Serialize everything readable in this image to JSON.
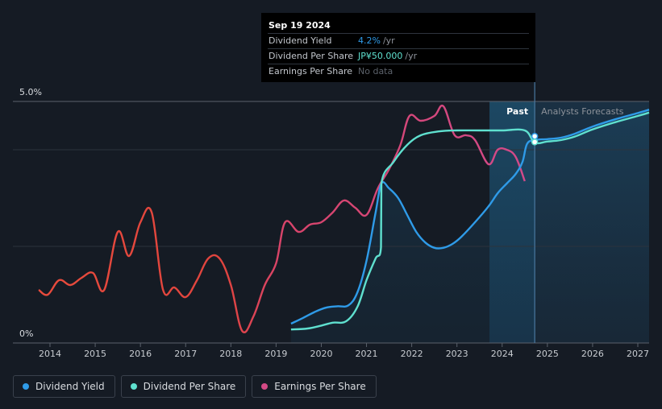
{
  "tooltip": {
    "date": "Sep 19 2024",
    "rows": [
      {
        "label": "Dividend Yield",
        "value": "4.2%",
        "unit": "/yr",
        "color": "#2f9be8"
      },
      {
        "label": "Dividend Per Share",
        "value": "JP¥50.000",
        "unit": "/yr",
        "color": "#5fe0cf"
      },
      {
        "label": "Earnings Per Share",
        "value": "No data",
        "unit": "",
        "color": "#5c626b"
      }
    ]
  },
  "legend": [
    {
      "label": "Dividend Yield",
      "color": "#2f9be8"
    },
    {
      "label": "Dividend Per Share",
      "color": "#5fe0cf"
    },
    {
      "label": "Earnings Per Share",
      "color": "#d44a86"
    }
  ],
  "chart_data": {
    "type": "line",
    "y_axis_labels": [
      "5.0%",
      "0%"
    ],
    "ylim": [
      0,
      5.0
    ],
    "xlim": [
      2013.5,
      2027.3
    ],
    "x_ticks": [
      2014,
      2015,
      2016,
      2017,
      2018,
      2019,
      2020,
      2021,
      2022,
      2023,
      2024,
      2025,
      2026,
      2027
    ],
    "region_labels": {
      "past": "Past",
      "forecast": "Analysts Forecasts"
    },
    "past_start": 2023.72,
    "forecast_start": 2024.72,
    "series": [
      {
        "name": "Dividend Yield",
        "color": "#2f9be8",
        "points": [
          [
            2019.33,
            0.4
          ],
          [
            2019.6,
            0.52
          ],
          [
            2019.85,
            0.64
          ],
          [
            2020.1,
            0.73
          ],
          [
            2020.35,
            0.76
          ],
          [
            2020.6,
            0.78
          ],
          [
            2020.8,
            1.05
          ],
          [
            2021.0,
            1.7
          ],
          [
            2021.2,
            2.7
          ],
          [
            2021.33,
            3.3
          ],
          [
            2021.5,
            3.2
          ],
          [
            2021.7,
            3.0
          ],
          [
            2021.9,
            2.65
          ],
          [
            2022.1,
            2.3
          ],
          [
            2022.3,
            2.08
          ],
          [
            2022.5,
            1.97
          ],
          [
            2022.7,
            1.97
          ],
          [
            2022.9,
            2.05
          ],
          [
            2023.1,
            2.2
          ],
          [
            2023.4,
            2.5
          ],
          [
            2023.7,
            2.83
          ],
          [
            2023.9,
            3.1
          ],
          [
            2024.1,
            3.3
          ],
          [
            2024.3,
            3.5
          ],
          [
            2024.45,
            3.75
          ],
          [
            2024.55,
            4.12
          ],
          [
            2024.72,
            4.2
          ],
          [
            2025.0,
            4.22
          ],
          [
            2025.3,
            4.25
          ],
          [
            2025.6,
            4.33
          ],
          [
            2026.0,
            4.48
          ],
          [
            2026.5,
            4.63
          ],
          [
            2027.0,
            4.76
          ],
          [
            2027.25,
            4.83
          ]
        ]
      },
      {
        "name": "Dividend Per Share",
        "color": "#5fe0cf",
        "points": [
          [
            2019.33,
            0.28
          ],
          [
            2019.7,
            0.3
          ],
          [
            2020.0,
            0.36
          ],
          [
            2020.25,
            0.42
          ],
          [
            2020.55,
            0.45
          ],
          [
            2020.8,
            0.75
          ],
          [
            2021.0,
            1.3
          ],
          [
            2021.2,
            1.75
          ],
          [
            2021.32,
            1.98
          ],
          [
            2021.33,
            3.3
          ],
          [
            2021.6,
            3.75
          ],
          [
            2021.9,
            4.1
          ],
          [
            2022.2,
            4.3
          ],
          [
            2022.6,
            4.38
          ],
          [
            2023.0,
            4.4
          ],
          [
            2023.5,
            4.4
          ],
          [
            2024.0,
            4.4
          ],
          [
            2024.5,
            4.4
          ],
          [
            2024.72,
            4.15
          ],
          [
            2025.0,
            4.17
          ],
          [
            2025.3,
            4.2
          ],
          [
            2025.6,
            4.27
          ],
          [
            2026.0,
            4.42
          ],
          [
            2026.5,
            4.57
          ],
          [
            2027.0,
            4.7
          ],
          [
            2027.25,
            4.77
          ]
        ]
      },
      {
        "name": "Earnings Per Share",
        "color": "#d44a86",
        "points": [
          [
            2013.75,
            1.1
          ],
          [
            2013.95,
            1.0
          ],
          [
            2014.2,
            1.3
          ],
          [
            2014.45,
            1.2
          ],
          [
            2014.7,
            1.35
          ],
          [
            2014.95,
            1.45
          ],
          [
            2015.2,
            1.1
          ],
          [
            2015.5,
            2.3
          ],
          [
            2015.75,
            1.8
          ],
          [
            2016.0,
            2.5
          ],
          [
            2016.25,
            2.7
          ],
          [
            2016.5,
            1.1
          ],
          [
            2016.75,
            1.15
          ],
          [
            2017.0,
            0.95
          ],
          [
            2017.25,
            1.3
          ],
          [
            2017.5,
            1.75
          ],
          [
            2017.75,
            1.75
          ],
          [
            2018.0,
            1.2
          ],
          [
            2018.25,
            0.25
          ],
          [
            2018.5,
            0.55
          ],
          [
            2018.75,
            1.2
          ],
          [
            2019.0,
            1.65
          ],
          [
            2019.2,
            2.5
          ],
          [
            2019.5,
            2.3
          ],
          [
            2019.75,
            2.45
          ],
          [
            2020.0,
            2.5
          ],
          [
            2020.25,
            2.7
          ],
          [
            2020.5,
            2.95
          ],
          [
            2020.75,
            2.8
          ],
          [
            2021.0,
            2.65
          ],
          [
            2021.25,
            3.2
          ],
          [
            2021.5,
            3.6
          ],
          [
            2021.75,
            4.1
          ],
          [
            2021.95,
            4.7
          ],
          [
            2022.2,
            4.6
          ],
          [
            2022.5,
            4.7
          ],
          [
            2022.7,
            4.9
          ],
          [
            2022.95,
            4.3
          ],
          [
            2023.2,
            4.3
          ],
          [
            2023.4,
            4.2
          ],
          [
            2023.7,
            3.7
          ],
          [
            2023.9,
            4.0
          ],
          [
            2024.1,
            4.0
          ],
          [
            2024.3,
            3.85
          ],
          [
            2024.5,
            3.35
          ]
        ]
      }
    ],
    "highlight_x": 2024.72
  }
}
